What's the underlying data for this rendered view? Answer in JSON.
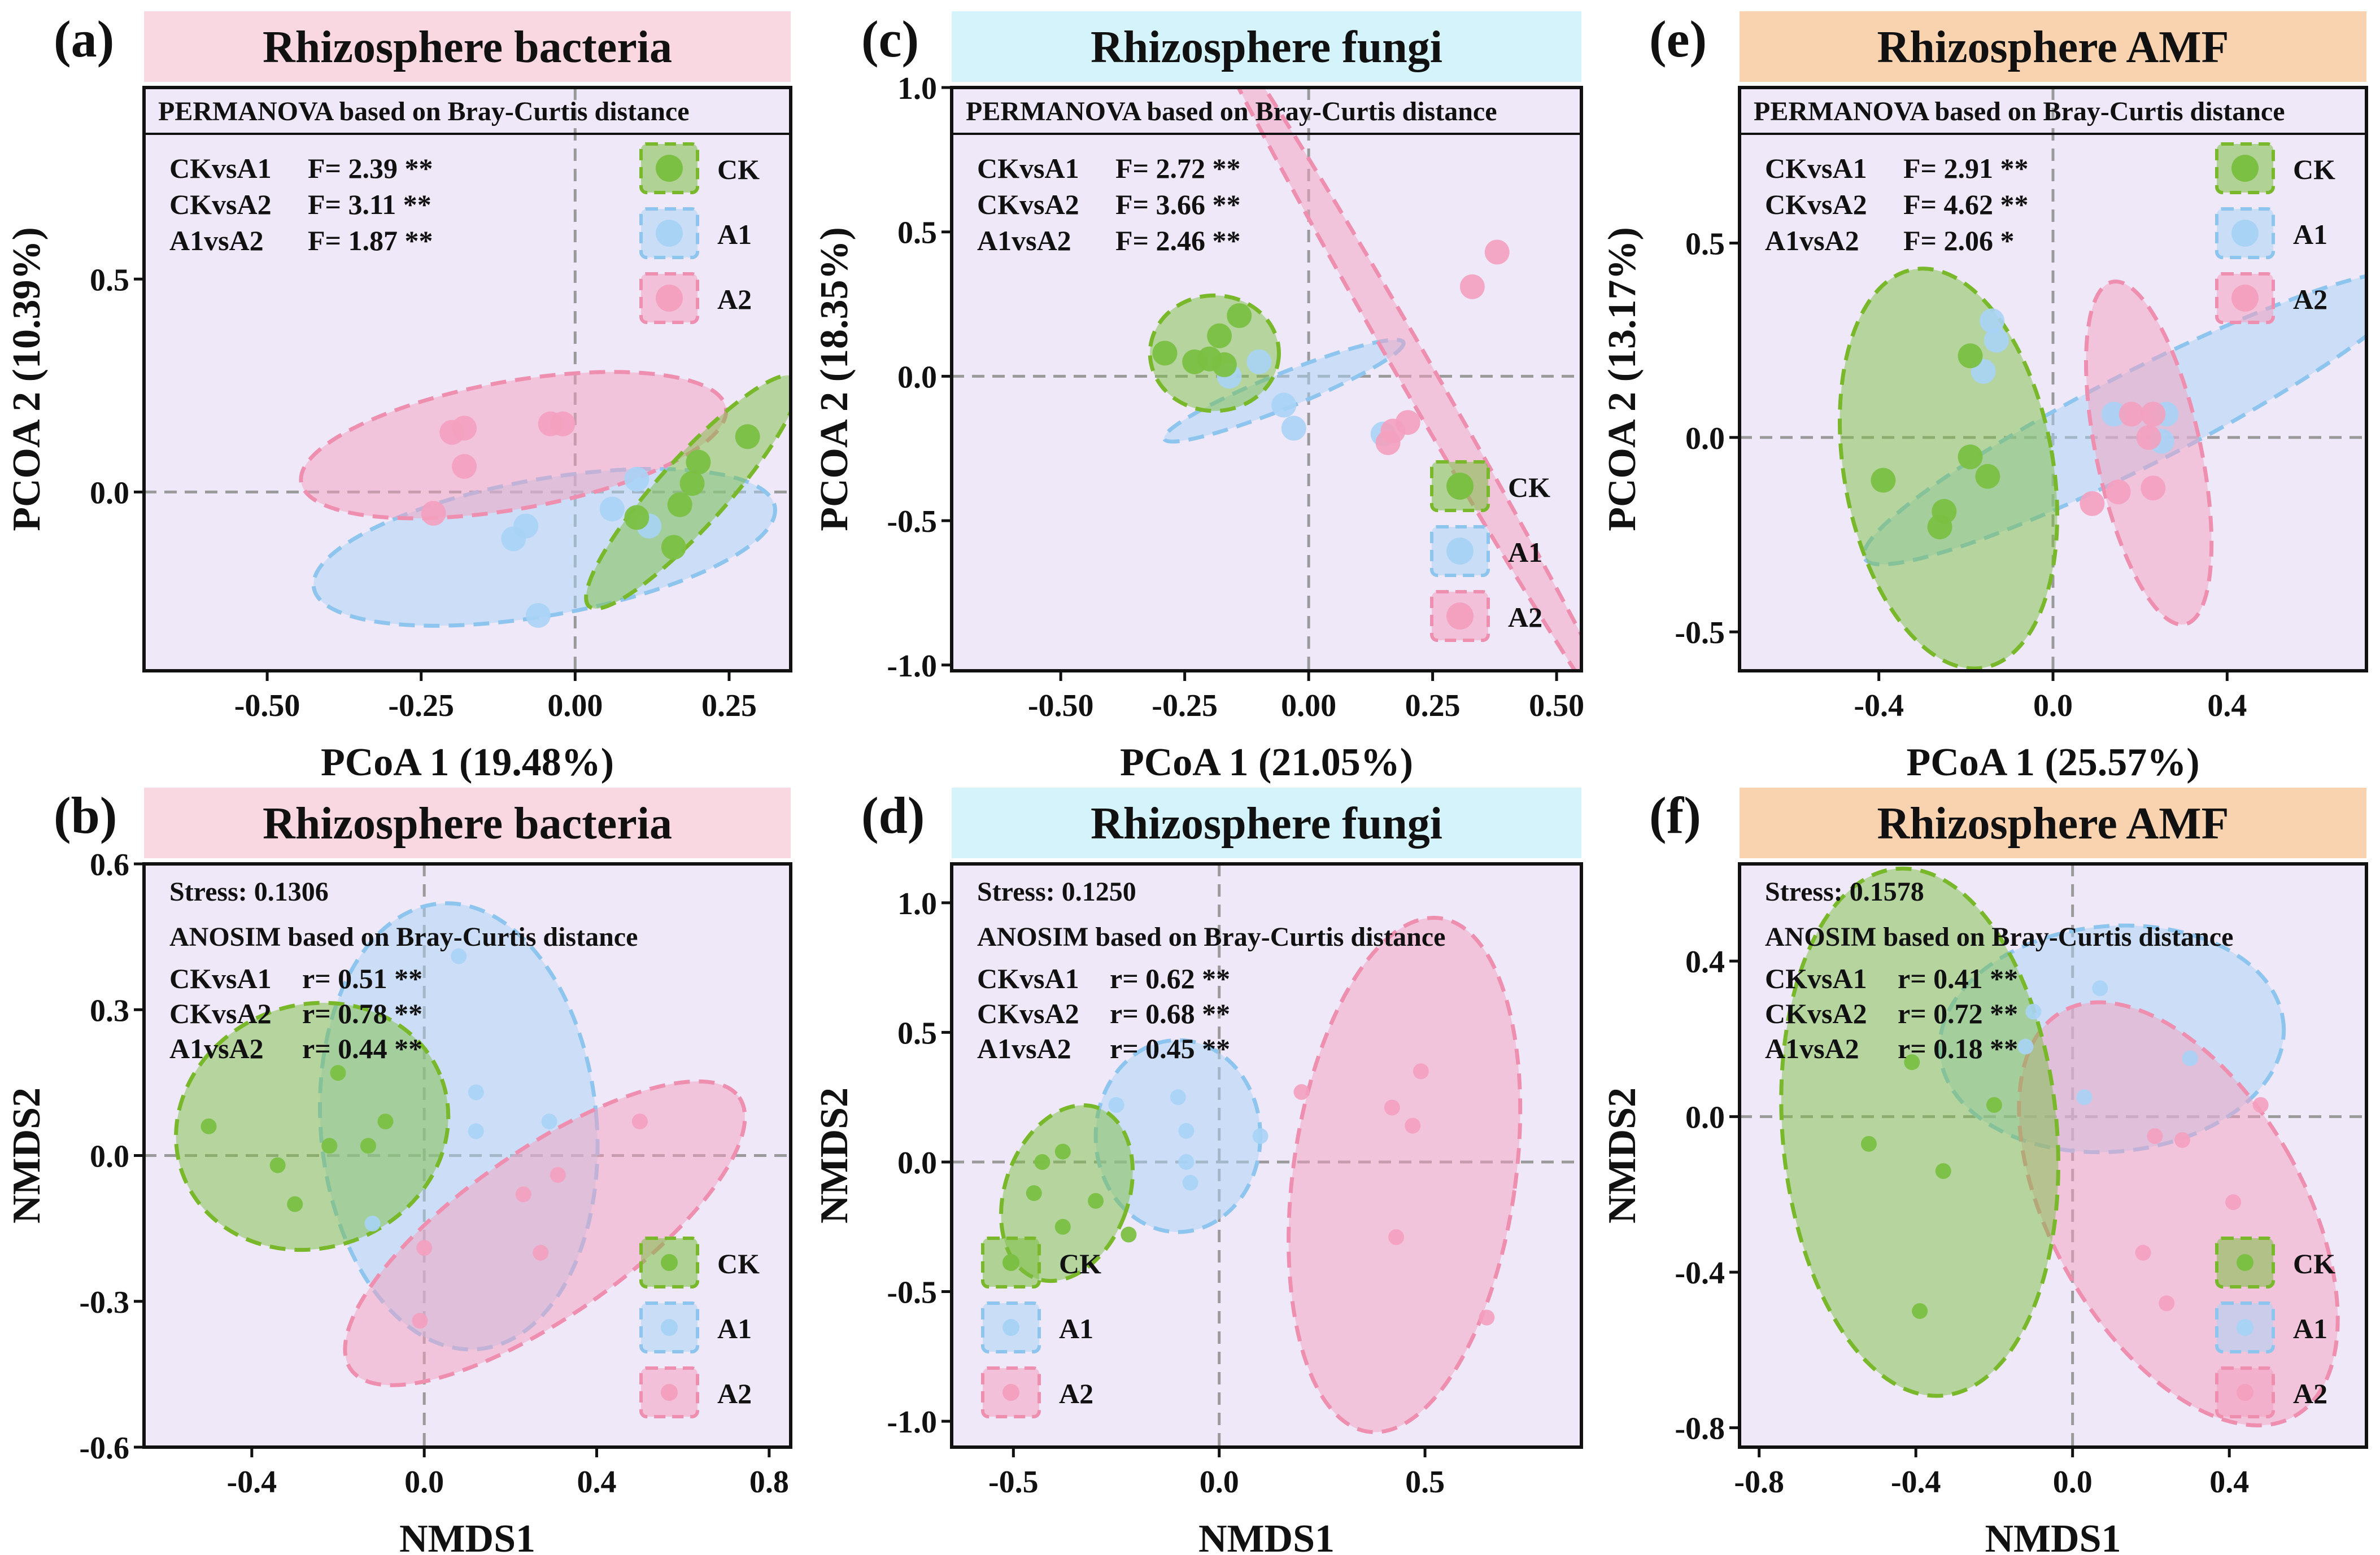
{
  "colors": {
    "plot_bg": "#efe8f8",
    "CK": "#7bc043",
    "A1": "#a9d3f5",
    "A2": "#f4a0bf",
    "CK_edge": "#78b82a",
    "A1_edge": "#8ec5ef",
    "A2_edge": "#ef8fb0",
    "title_bacteria": "#f9d8e2",
    "title_fungi": "#d5f3fa",
    "title_amf": "#f9d2b0"
  },
  "chart_data": [
    {
      "id": "a",
      "panel_label": "(a)",
      "type": "scatter",
      "method": "pcoa",
      "title": "Rhizosphere bacteria",
      "title_color_key": "title_bacteria",
      "xlabel": "PCoA 1 (19.48%)",
      "ylabel": "PCOA 2 (10.39%)",
      "xlim": [
        -0.7,
        0.35
      ],
      "ylim": [
        -0.42,
        0.95
      ],
      "xticks": [
        -0.5,
        -0.25,
        0.0,
        0.25
      ],
      "xtick_labels": [
        "-0.50",
        "-0.25",
        "0.00",
        "0.25"
      ],
      "yticks": [
        0.0,
        0.5
      ],
      "ytick_labels": [
        "0.0",
        "0.5"
      ],
      "stat_title": "PERMANOVA based on Bray-Curtis distance",
      "stat_title_box": true,
      "stats": [
        [
          "CKvsA1",
          "F= 2.39 **"
        ],
        [
          "CKvsA2",
          "F= 3.11 **"
        ],
        [
          "A1vsA2",
          "F= 1.87 **"
        ]
      ],
      "legend": [
        "CK",
        "A1",
        "A2"
      ],
      "legend_placement": "top-right",
      "series": [
        {
          "name": "A1",
          "points": [
            [
              0.1,
              0.03
            ],
            [
              0.06,
              -0.04
            ],
            [
              -0.08,
              -0.08
            ],
            [
              -0.1,
              -0.11
            ],
            [
              -0.06,
              -0.29
            ],
            [
              0.12,
              -0.08
            ]
          ],
          "ellipse": {
            "cx": -0.05,
            "cy": -0.13,
            "rx": 0.38,
            "ry": 0.16,
            "angle": 10
          }
        },
        {
          "name": "A2",
          "points": [
            [
              -0.2,
              0.14
            ],
            [
              -0.18,
              0.15
            ],
            [
              -0.02,
              0.16
            ],
            [
              -0.04,
              0.16
            ],
            [
              -0.18,
              0.06
            ],
            [
              -0.23,
              -0.05
            ]
          ],
          "ellipse": {
            "cx": -0.1,
            "cy": 0.11,
            "rx": 0.35,
            "ry": 0.15,
            "angle": 10
          }
        },
        {
          "name": "CK",
          "points": [
            [
              0.28,
              0.13
            ],
            [
              0.2,
              0.07
            ],
            [
              0.19,
              0.02
            ],
            [
              0.1,
              -0.06
            ],
            [
              0.17,
              -0.03
            ],
            [
              0.16,
              -0.13
            ]
          ],
          "ellipse": {
            "cx": 0.19,
            "cy": 0.0,
            "rx": 0.25,
            "ry": 0.08,
            "angle": 48
          }
        }
      ]
    },
    {
      "id": "b",
      "panel_label": "(b)",
      "type": "scatter",
      "method": "nmds",
      "title": "Rhizosphere bacteria",
      "title_color_key": "title_bacteria",
      "xlabel": "NMDS1",
      "ylabel": "NMDS2",
      "xlim": [
        -0.65,
        0.85
      ],
      "ylim": [
        -0.6,
        0.6
      ],
      "xticks": [
        -0.4,
        0.0,
        0.4,
        0.8
      ],
      "xtick_labels": [
        "-0.4",
        "0.0",
        "0.4",
        "0.8"
      ],
      "yticks": [
        -0.6,
        -0.3,
        0.0,
        0.3,
        0.6
      ],
      "ytick_labels": [
        "-0.6",
        "-0.3",
        "0.0",
        "0.3",
        "0.6"
      ],
      "stress": "Stress: 0.1306",
      "stat_title": "ANOSIM based on Bray-Curtis distance",
      "stat_title_box": false,
      "stats": [
        [
          "CKvsA1",
          "r= 0.51 **"
        ],
        [
          "CKvsA2",
          "r= 0.78 **"
        ],
        [
          "A1vsA2",
          "r= 0.44 **"
        ]
      ],
      "legend": [
        "CK",
        "A1",
        "A2"
      ],
      "legend_placement": "bottom-right",
      "series": [
        {
          "name": "A1",
          "points": [
            [
              0.08,
              0.41
            ],
            [
              0.12,
              0.13
            ],
            [
              0.12,
              0.05
            ],
            [
              0.29,
              0.07
            ],
            [
              -0.12,
              -0.14
            ]
          ],
          "ellipse": {
            "cx": 0.08,
            "cy": 0.06,
            "rx": 0.32,
            "ry": 0.46,
            "angle": 5
          }
        },
        {
          "name": "A2",
          "points": [
            [
              0.5,
              0.07
            ],
            [
              0.31,
              -0.04
            ],
            [
              0.23,
              -0.08
            ],
            [
              0.0,
              -0.19
            ],
            [
              -0.01,
              -0.34
            ],
            [
              0.27,
              -0.2
            ]
          ],
          "ellipse": {
            "cx": 0.28,
            "cy": -0.16,
            "rx": 0.55,
            "ry": 0.17,
            "angle": 35
          }
        },
        {
          "name": "CK",
          "points": [
            [
              -0.5,
              0.06
            ],
            [
              -0.2,
              0.17
            ],
            [
              -0.22,
              0.02
            ],
            [
              -0.13,
              0.02
            ],
            [
              -0.09,
              0.07
            ],
            [
              -0.34,
              -0.02
            ],
            [
              -0.3,
              -0.1
            ]
          ],
          "ellipse": {
            "cx": -0.26,
            "cy": 0.06,
            "rx": 0.32,
            "ry": 0.25,
            "angle": 20
          }
        }
      ]
    },
    {
      "id": "c",
      "panel_label": "(c)",
      "type": "scatter",
      "method": "pcoa",
      "title": "Rhizosphere fungi",
      "title_color_key": "title_fungi",
      "xlabel": "PCoA 1 (21.05%)",
      "ylabel": "PCOA 2 (18.35%)",
      "xlim": [
        -0.72,
        0.55
      ],
      "ylim": [
        -1.02,
        1.0
      ],
      "xticks": [
        -0.5,
        -0.25,
        0.0,
        0.25,
        0.5
      ],
      "xtick_labels": [
        "-0.50",
        "-0.25",
        "0.00",
        "0.25",
        "0.50"
      ],
      "yticks": [
        -1.0,
        -0.5,
        0.0,
        0.5,
        1.0
      ],
      "ytick_labels": [
        "-1.0",
        "-0.5",
        "0.0",
        "0.5",
        "1.0"
      ],
      "stat_title": "PERMANOVA based on Bray-Curtis distance",
      "stat_title_box": true,
      "stats": [
        [
          "CKvsA1",
          "F= 2.72 **"
        ],
        [
          "CKvsA2",
          "F= 3.66 **"
        ],
        [
          "A1vsA2",
          "F= 2.46 **"
        ]
      ],
      "legend": [
        "CK",
        "A1",
        "A2"
      ],
      "legend_placement": "bottom-right",
      "series": [
        {
          "name": "A1",
          "points": [
            [
              -0.16,
              0.0
            ],
            [
              -0.05,
              -0.1
            ],
            [
              -0.03,
              -0.18
            ],
            [
              0.15,
              -0.2
            ],
            [
              -0.1,
              0.05
            ]
          ],
          "ellipse": {
            "cx": -0.05,
            "cy": -0.05,
            "rx": 0.26,
            "ry": 0.06,
            "angle": 22
          }
        },
        {
          "name": "A2",
          "points": [
            [
              0.38,
              0.43
            ],
            [
              0.33,
              0.31
            ],
            [
              0.2,
              -0.16
            ],
            [
              0.17,
              -0.19
            ],
            [
              0.16,
              -0.23
            ]
          ],
          "ellipse": {
            "cx": 0.22,
            "cy": 0.0,
            "rx": 0.88,
            "ry": 0.06,
            "angle": -60
          }
        },
        {
          "name": "CK",
          "points": [
            [
              -0.14,
              0.21
            ],
            [
              -0.18,
              0.14
            ],
            [
              -0.29,
              0.08
            ],
            [
              -0.2,
              0.06
            ],
            [
              -0.17,
              0.04
            ],
            [
              -0.23,
              0.05
            ]
          ],
          "ellipse": {
            "cx": -0.19,
            "cy": 0.08,
            "rx": 0.13,
            "ry": 0.2,
            "angle": 0
          }
        }
      ]
    },
    {
      "id": "d",
      "panel_label": "(d)",
      "type": "scatter",
      "method": "nmds",
      "title": "Rhizosphere fungi",
      "title_color_key": "title_fungi",
      "xlabel": "NMDS1",
      "ylabel": "NMDS2",
      "xlim": [
        -0.65,
        0.88
      ],
      "ylim": [
        -1.1,
        1.15
      ],
      "xticks": [
        -0.5,
        0.0,
        0.5
      ],
      "xtick_labels": [
        "-0.5",
        "0.0",
        "0.5"
      ],
      "yticks": [
        -1.0,
        -0.5,
        0.0,
        0.5,
        1.0
      ],
      "ytick_labels": [
        "-1.0",
        "-0.5",
        "0.0",
        "0.5",
        "1.0"
      ],
      "stress": "Stress: 0.1250",
      "stat_title": "ANOSIM based on Bray-Curtis distance",
      "stat_title_box": false,
      "stats": [
        [
          "CKvsA1",
          "r= 0.62 **"
        ],
        [
          "CKvsA2",
          "r= 0.68 **"
        ],
        [
          "A1vsA2",
          "r= 0.45 **"
        ]
      ],
      "legend": [
        "CK",
        "A1",
        "A2"
      ],
      "legend_placement": "bottom-left",
      "series": [
        {
          "name": "A1",
          "points": [
            [
              -0.25,
              0.22
            ],
            [
              -0.1,
              0.25
            ],
            [
              -0.08,
              0.12
            ],
            [
              -0.08,
              0.0
            ],
            [
              -0.07,
              -0.08
            ],
            [
              0.1,
              0.1
            ]
          ],
          "ellipse": {
            "cx": -0.1,
            "cy": 0.1,
            "rx": 0.2,
            "ry": 0.37,
            "angle": 0
          }
        },
        {
          "name": "A2",
          "points": [
            [
              0.2,
              0.27
            ],
            [
              0.42,
              0.21
            ],
            [
              0.47,
              0.14
            ],
            [
              0.49,
              0.35
            ],
            [
              0.43,
              -0.29
            ],
            [
              0.65,
              -0.6
            ]
          ],
          "ellipse": {
            "cx": 0.45,
            "cy": -0.05,
            "rx": 0.27,
            "ry": 1.0,
            "angle": -8
          }
        },
        {
          "name": "CK",
          "points": [
            [
              -0.38,
              0.04
            ],
            [
              -0.43,
              0.0
            ],
            [
              -0.45,
              -0.12
            ],
            [
              -0.38,
              -0.25
            ],
            [
              -0.3,
              -0.15
            ],
            [
              -0.22,
              -0.28
            ]
          ],
          "ellipse": {
            "cx": -0.37,
            "cy": -0.12,
            "rx": 0.15,
            "ry": 0.35,
            "angle": -20
          }
        }
      ]
    },
    {
      "id": "e",
      "panel_label": "(e)",
      "type": "scatter",
      "method": "pcoa",
      "title": "Rhizosphere AMF",
      "title_color_key": "title_amf",
      "xlabel": "PCoA 1 (25.57%)",
      "ylabel": "PCOA 2 (13.17%)",
      "xlim": [
        -0.72,
        0.72
      ],
      "ylim": [
        -0.6,
        0.9
      ],
      "xticks": [
        -0.4,
        0.0,
        0.4
      ],
      "xtick_labels": [
        "-0.4",
        "0.0",
        "0.4"
      ],
      "yticks": [
        -0.5,
        0.0,
        0.5
      ],
      "ytick_labels": [
        "-0.5",
        "0.0",
        "0.5"
      ],
      "stat_title": "PERMANOVA based on Bray-Curtis distance",
      "stat_title_box": true,
      "stats": [
        [
          "CKvsA1",
          "F= 2.91 **"
        ],
        [
          "CKvsA2",
          "F= 4.62 **"
        ],
        [
          "A1vsA2",
          "F= 2.06 *"
        ]
      ],
      "legend": [
        "CK",
        "A1",
        "A2"
      ],
      "legend_placement": "top-right",
      "series": [
        {
          "name": "A1",
          "points": [
            [
              -0.14,
              0.3
            ],
            [
              -0.13,
              0.25
            ],
            [
              -0.16,
              0.17
            ],
            [
              0.14,
              0.06
            ],
            [
              0.26,
              0.06
            ],
            [
              0.25,
              -0.01
            ]
          ],
          "ellipse": {
            "cx": 0.2,
            "cy": 0.05,
            "rx": 0.71,
            "ry": 0.12,
            "angle": 27
          }
        },
        {
          "name": "A2",
          "points": [
            [
              0.23,
              0.06
            ],
            [
              0.18,
              0.06
            ],
            [
              0.22,
              0.0
            ],
            [
              0.15,
              -0.14
            ],
            [
              0.23,
              -0.13
            ],
            [
              0.09,
              -0.17
            ]
          ],
          "ellipse": {
            "cx": 0.22,
            "cy": -0.04,
            "rx": 0.12,
            "ry": 0.45,
            "angle": 12
          }
        },
        {
          "name": "CK",
          "points": [
            [
              -0.19,
              0.21
            ],
            [
              -0.19,
              -0.05
            ],
            [
              -0.15,
              -0.1
            ],
            [
              -0.25,
              -0.19
            ],
            [
              -0.26,
              -0.23
            ],
            [
              -0.39,
              -0.11
            ]
          ],
          "ellipse": {
            "cx": -0.24,
            "cy": -0.08,
            "rx": 0.24,
            "ry": 0.52,
            "angle": 10
          }
        }
      ]
    },
    {
      "id": "f",
      "panel_label": "(f)",
      "type": "scatter",
      "method": "nmds",
      "title": "Rhizosphere AMF",
      "title_color_key": "title_amf",
      "xlabel": "NMDS1",
      "ylabel": "NMDS2",
      "xlim": [
        -0.85,
        0.75
      ],
      "ylim": [
        -0.85,
        0.65
      ],
      "xticks": [
        -0.8,
        -0.4,
        0.0,
        0.4
      ],
      "xtick_labels": [
        "-0.8",
        "-0.4",
        "0.0",
        "0.4"
      ],
      "yticks": [
        -0.8,
        -0.4,
        0.0,
        0.4
      ],
      "ytick_labels": [
        "-0.8",
        "-0.4",
        "0.0",
        "0.4"
      ],
      "stress": "Stress: 0.1578",
      "stat_title": "ANOSIM based on Bray-Curtis distance",
      "stat_title_box": false,
      "stats": [
        [
          "CKvsA1",
          "r= 0.41 **"
        ],
        [
          "CKvsA2",
          "r= 0.72 **"
        ],
        [
          "A1vsA2",
          "r= 0.18 **"
        ]
      ],
      "legend": [
        "CK",
        "A1",
        "A2"
      ],
      "legend_placement": "bottom-right",
      "series": [
        {
          "name": "A1",
          "points": [
            [
              0.07,
              0.33
            ],
            [
              -0.1,
              0.27
            ],
            [
              -0.12,
              0.18
            ],
            [
              0.3,
              0.15
            ],
            [
              0.03,
              0.05
            ]
          ],
          "ellipse": {
            "cx": 0.1,
            "cy": 0.2,
            "rx": 0.44,
            "ry": 0.29,
            "angle": 5
          }
        },
        {
          "name": "A2",
          "points": [
            [
              0.48,
              0.03
            ],
            [
              0.21,
              -0.05
            ],
            [
              0.28,
              -0.06
            ],
            [
              0.18,
              -0.35
            ],
            [
              0.41,
              -0.22
            ],
            [
              0.24,
              -0.48
            ]
          ],
          "ellipse": {
            "cx": 0.27,
            "cy": -0.25,
            "rx": 0.32,
            "ry": 0.6,
            "angle": 30
          }
        },
        {
          "name": "CK",
          "points": [
            [
              -0.41,
              0.14
            ],
            [
              -0.2,
              0.03
            ],
            [
              -0.52,
              -0.07
            ],
            [
              -0.33,
              -0.14
            ],
            [
              -0.39,
              -0.5
            ]
          ],
          "ellipse": {
            "cx": -0.39,
            "cy": -0.04,
            "rx": 0.35,
            "ry": 0.68,
            "angle": 5
          }
        }
      ]
    }
  ]
}
